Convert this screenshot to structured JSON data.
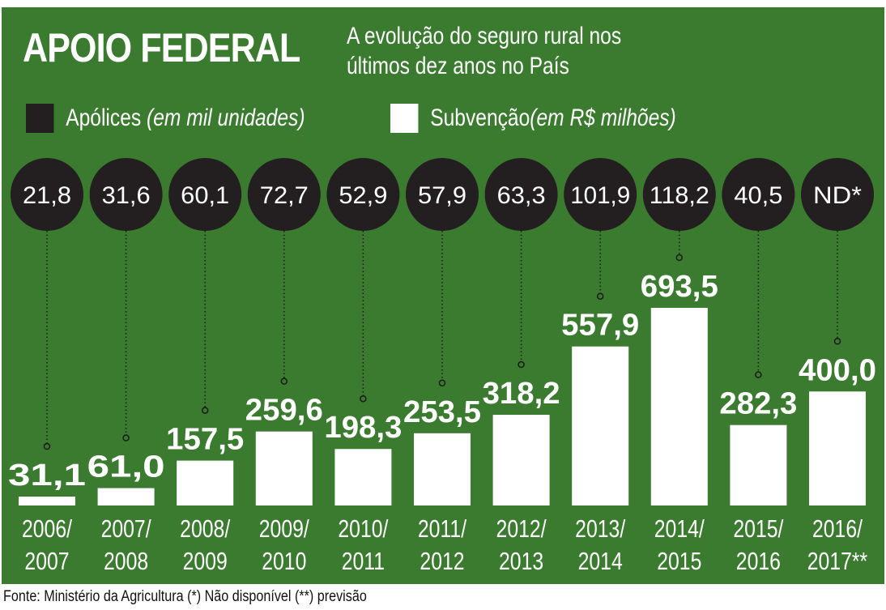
{
  "title": "APOIO FEDERAL",
  "subtitle_line1": "A evolução do seguro rural nos",
  "subtitle_line2": "últimos dez anos no País",
  "legend": [
    {
      "label": "Apólices",
      "unit": "(em mil unidades)",
      "color": "#231f20"
    },
    {
      "label": "Subvenção",
      "unit": "(em R$ milhões)",
      "color": "#ffffff"
    }
  ],
  "footer": "Fonte: Ministério da Agricultura    (*) Não disponível (**) previsão",
  "colors": {
    "background": "#3b7b2f",
    "circle": "#231f20",
    "bar": "#ffffff"
  },
  "chart_data": {
    "type": "bar",
    "title": "APOIO FEDERAL",
    "categories": [
      "2006/ 2007",
      "2007/ 2008",
      "2008/ 2009",
      "2009/ 2010",
      "2010/ 2011",
      "2011/ 2012",
      "2012/ 2013",
      "2013/ 2014",
      "2014/ 2015",
      "2015/ 2016",
      "2016/ 2017**"
    ],
    "series": [
      {
        "name": "Apólices (em mil unidades)",
        "labels": [
          "21,8",
          "31,6",
          "60,1",
          "72,7",
          "52,9",
          "57,9",
          "63,3",
          "101,9",
          "118,2",
          "40,5",
          "ND*"
        ],
        "values": [
          21.8,
          31.6,
          60.1,
          72.7,
          52.9,
          57.9,
          63.3,
          101.9,
          118.2,
          40.5,
          null
        ],
        "display": "circle"
      },
      {
        "name": "Subvenção (em R$ milhões)",
        "labels": [
          "31,1",
          "61,0",
          "157,5",
          "259,6",
          "198,3",
          "253,5",
          "318,2",
          "557,9",
          "693,5",
          "282,3",
          "400,0"
        ],
        "values": [
          31.1,
          61.0,
          157.5,
          259.6,
          198.3,
          253.5,
          318.2,
          557.9,
          693.5,
          282.3,
          400.0
        ],
        "display": "bar"
      }
    ],
    "grid": false,
    "legend_position": "top-left"
  }
}
